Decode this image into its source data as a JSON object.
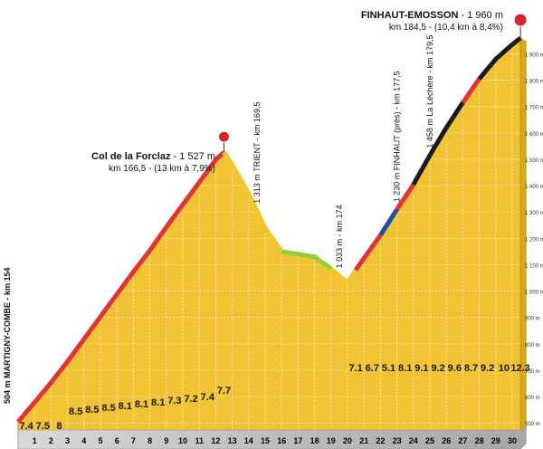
{
  "chart_data": {
    "type": "area",
    "title": "",
    "xlabel": "",
    "ylabel": "",
    "x": [
      0,
      1,
      2,
      3,
      4,
      5,
      6,
      7,
      8,
      9,
      10,
      11,
      12,
      12.5,
      13,
      14,
      15,
      16,
      17,
      18,
      19,
      20,
      20.5,
      21,
      22,
      23,
      24,
      25,
      26,
      27,
      28,
      29,
      30,
      30.5
    ],
    "y": [
      504,
      578,
      653,
      733,
      818,
      903,
      988,
      1073,
      1154,
      1243,
      1328,
      1413,
      1498,
      1527,
      1480,
      1370,
      1240,
      1150,
      1140,
      1130,
      1085,
      1033,
      1080,
      1125,
      1212,
      1310,
      1404,
      1515,
      1620,
      1715,
      1805,
      1880,
      1935,
      1960
    ],
    "ylim": [
      504,
      2000
    ],
    "ytick_values": [
      500,
      600,
      700,
      800,
      900,
      1000,
      1100,
      1200,
      1300,
      1400,
      1500,
      1600,
      1700,
      1800,
      1900
    ],
    "ytick_labels": [
      "500 m",
      "600 m",
      "700 m",
      "800 m",
      "900 m",
      "1 000 m",
      "1 100 m",
      "1 200 m",
      "1 300 m",
      "1 400 m",
      "1 500 m",
      "1 600 m",
      "1 700 m",
      "1 800 m",
      "1 900 m"
    ],
    "km_labels": [
      "1",
      "2",
      "3",
      "4",
      "5",
      "6",
      "7",
      "8",
      "9",
      "10",
      "11",
      "12",
      "13",
      "14",
      "15",
      "16",
      "17",
      "18",
      "19",
      "20",
      "21",
      "22",
      "23",
      "24",
      "25",
      "26",
      "27",
      "28",
      "29",
      "30"
    ],
    "gradients": [
      {
        "km": 1,
        "value": "7.4"
      },
      {
        "km": 2,
        "value": "7.5"
      },
      {
        "km": 3,
        "value": "8"
      },
      {
        "km": 4,
        "value": "8.5"
      },
      {
        "km": 5,
        "value": "8.5"
      },
      {
        "km": 6,
        "value": "8.5"
      },
      {
        "km": 7,
        "value": "8.1"
      },
      {
        "km": 8,
        "value": "8.1"
      },
      {
        "km": 9,
        "value": "8.1"
      },
      {
        "km": 10,
        "value": "7.3"
      },
      {
        "km": 11,
        "value": "7.2"
      },
      {
        "km": 12,
        "value": "7.4"
      },
      {
        "km": 13,
        "value": "7.7"
      },
      {
        "km": 21,
        "value": "7.1"
      },
      {
        "km": 22,
        "value": "6.7"
      },
      {
        "km": 23,
        "value": "5.1"
      },
      {
        "km": 24,
        "value": "8.1"
      },
      {
        "km": 25,
        "value": "9.1"
      },
      {
        "km": 26,
        "value": "9.2"
      },
      {
        "km": 27,
        "value": "9.6"
      },
      {
        "km": 28,
        "value": "8.7"
      },
      {
        "km": 29,
        "value": "9.2"
      },
      {
        "km": 30,
        "value": "10"
      },
      {
        "km": 31,
        "value": "12.3"
      }
    ],
    "gradient_colors": {
      "7.4": "#e23232",
      "7.5": "#e23232",
      "8": "#e23232",
      "8.5": "#e23232",
      "8.1": "#e23232",
      "7.3": "#e23232",
      "7.2": "#e23232",
      "7.7": "#e23232",
      "7.1": "#e23232",
      "6.7": "#1e4fa0",
      "5.1": "#1e4fa0",
      "9.1": "#1a1a1a",
      "9.2": "#1a1a1a",
      "9.6": "#1a1a1a",
      "8.7": "#e23232",
      "10": "#1a1a1a",
      "12.3": "#1a1a1a"
    },
    "line_segments": [
      {
        "x0": 0,
        "x1": 12.5,
        "color": "#e23232"
      },
      {
        "x0": 12.5,
        "x1": 16,
        "color": "#f0c530"
      },
      {
        "x0": 16,
        "x1": 19,
        "color": "#8fcf3a"
      },
      {
        "x0": 19,
        "x1": 20.5,
        "color": "#f0c530"
      },
      {
        "x0": 20.5,
        "x1": 22,
        "color": "#e23232"
      },
      {
        "x0": 22,
        "x1": 23,
        "color": "#1e4fa0"
      },
      {
        "x0": 23,
        "x1": 24,
        "color": "#e23232"
      },
      {
        "x0": 24,
        "x1": 27,
        "color": "#1a1a1a"
      },
      {
        "x0": 27,
        "x1": 28,
        "color": "#e23232"
      },
      {
        "x0": 28,
        "x1": 30.5,
        "color": "#1a1a1a"
      }
    ],
    "start_label": "504 m MARTIGNY-COMBE - km 154",
    "summit1": {
      "name": "Col de la Forclaz",
      "alt": " - 1 527 m",
      "sub": "km 166,5 - (13 km à 7,9%)",
      "x": 12.5,
      "y": 1527
    },
    "summit2": {
      "name": "FINHAUT-EMOSSON",
      "alt": " - 1 960 m",
      "sub": "km 184,5 - (10,4 km à 8,4%)",
      "x": 30.5,
      "y": 1960
    },
    "waypoints": [
      {
        "label": "1 313 m TRIENT - km 169,5",
        "x": 14.5
      },
      {
        "label": "1 033 m - km 174",
        "x": 19.5
      },
      {
        "label": "1 230 m FINHAUT (près) - km 177,5",
        "x": 23
      },
      {
        "label": "1 458 m La Léchère - km 179,5",
        "x": 25
      }
    ],
    "colors": {
      "profile_fill": "#f1c233",
      "profile_edge": "#c99612",
      "red": "#e23232",
      "marker": "#d9232a"
    }
  }
}
